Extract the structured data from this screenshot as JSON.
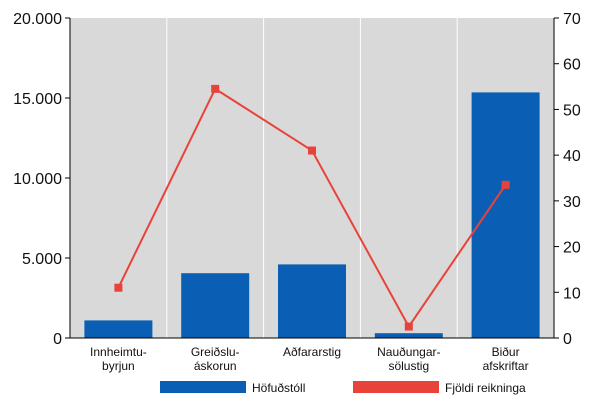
{
  "chart_data": {
    "type": "bar",
    "title": "",
    "xlabel": "",
    "ylabel": "",
    "categories": [
      [
        "Innheimtu-",
        "byrjun"
      ],
      [
        "Greiðslu-",
        "áskorun"
      ],
      [
        "Aðfararstig"
      ],
      [
        "Nauðungar-",
        "sölustig"
      ],
      [
        "Biður",
        "afskriftar"
      ]
    ],
    "series": [
      {
        "name": "Höfuðstóll",
        "type": "bar",
        "axis": "left",
        "color": "#0a5fb4",
        "values": [
          1100,
          4050,
          4600,
          300,
          15350
        ]
      },
      {
        "name": "Fjöldi reikninga",
        "type": "line",
        "axis": "right",
        "color": "#e8433a",
        "values": [
          11,
          54.5,
          41,
          2.5,
          33.5
        ]
      }
    ],
    "left_axis": {
      "ylim": [
        0,
        20000
      ],
      "ticks": [
        0,
        5000,
        10000,
        15000,
        20000
      ],
      "tick_labels": [
        "0",
        "5.000",
        "10.000",
        "15.000",
        "20.000"
      ]
    },
    "right_axis": {
      "ylim": [
        0,
        70
      ],
      "ticks": [
        0,
        10,
        20,
        30,
        40,
        50,
        60,
        70
      ],
      "tick_labels": [
        "0",
        "10",
        "20",
        "30",
        "40",
        "50",
        "60",
        "70"
      ]
    },
    "plot_background": "#d9d9d9",
    "gridlines": "vertical-category-separators",
    "legend": "bottom"
  }
}
